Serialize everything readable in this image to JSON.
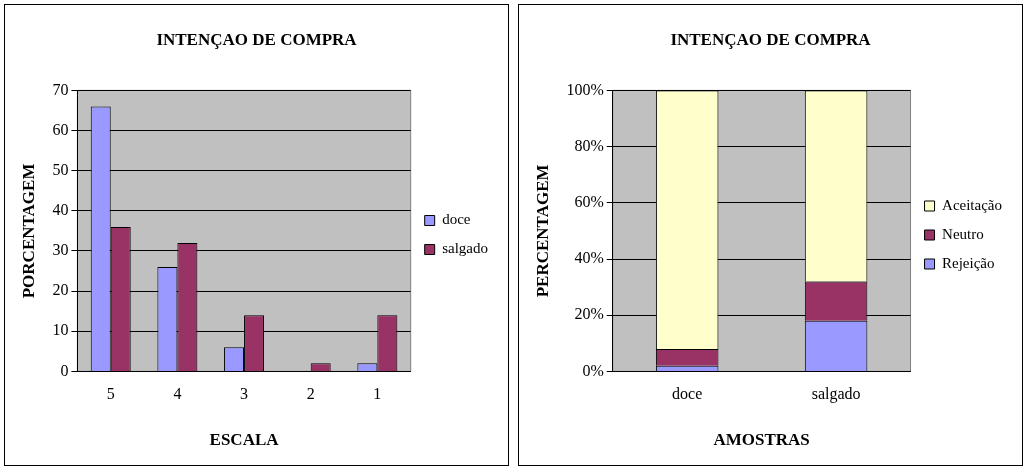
{
  "chart_data": [
    {
      "type": "bar",
      "title": "INTENÇAO DE COMPRA",
      "xlabel": "ESCALA",
      "ylabel": "PORCENTAGEM",
      "categories": [
        "5",
        "4",
        "3",
        "2",
        "1"
      ],
      "series": [
        {
          "name": "doce",
          "color": "#9999ff",
          "values": [
            66,
            26,
            6,
            0,
            2
          ]
        },
        {
          "name": "salgado",
          "color": "#993366",
          "values": [
            36,
            32,
            14,
            2,
            14
          ]
        }
      ],
      "ylim": [
        0,
        70
      ],
      "yticks": [
        0,
        10,
        20,
        30,
        40,
        50,
        60,
        70
      ],
      "grid": "y",
      "legend": "right"
    },
    {
      "type": "bar",
      "title": "INTENÇAO DE COMPRA",
      "xlabel": "AMOSTRAS",
      "ylabel": "PERCENTAGEM",
      "categories": [
        "doce",
        "salgado"
      ],
      "stacked": true,
      "series": [
        {
          "name": "Rejeição",
          "color": "#9999ff",
          "values": [
            2,
            18
          ]
        },
        {
          "name": "Neutro",
          "color": "#993366",
          "values": [
            6,
            14
          ]
        },
        {
          "name": "Aceitação",
          "color": "#ffffcc",
          "values": [
            92,
            68
          ]
        }
      ],
      "ylim": [
        0,
        100
      ],
      "yticks": [
        {
          "value": 0,
          "label": "0%"
        },
        {
          "value": 20,
          "label": "20%"
        },
        {
          "value": 40,
          "label": "40%"
        },
        {
          "value": 60,
          "label": "60%"
        },
        {
          "value": 80,
          "label": "80%"
        },
        {
          "value": 100,
          "label": "100%"
        }
      ],
      "grid": "y",
      "legend": "right"
    }
  ]
}
